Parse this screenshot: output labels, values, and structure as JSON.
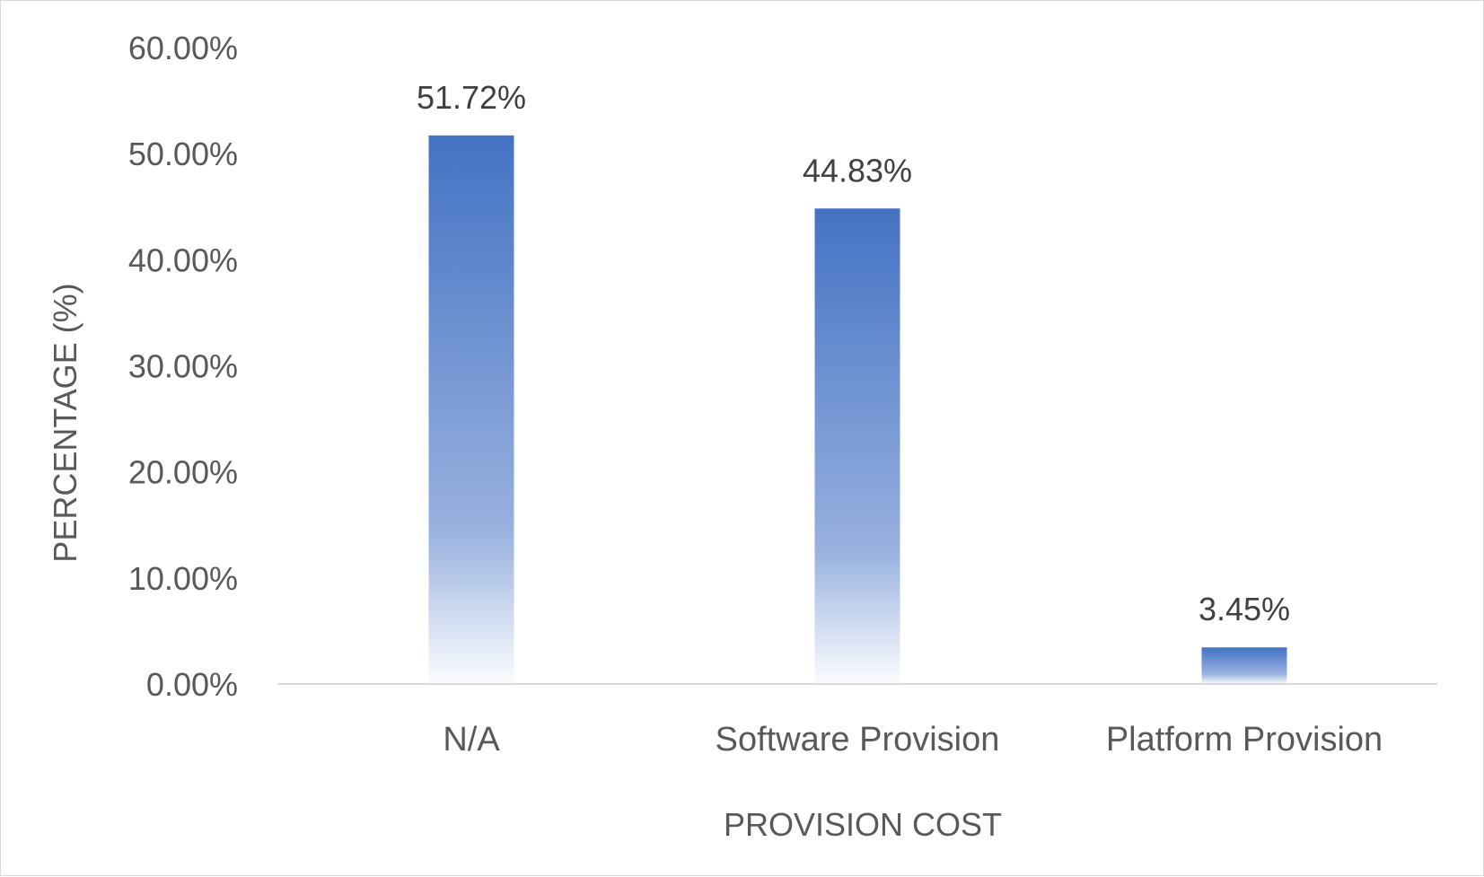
{
  "chart_data": {
    "type": "bar",
    "categories": [
      "N/A",
      "Software Provision",
      "Platform Provision"
    ],
    "values": [
      51.72,
      44.83,
      3.45
    ],
    "data_labels": [
      "51.72%",
      "44.83%",
      "3.45%"
    ],
    "title": "",
    "xlabel": "PROVISION COST",
    "ylabel": "PERCENTAGE (%)",
    "ylim": [
      0,
      60
    ],
    "yticks": [
      0,
      10,
      20,
      30,
      40,
      50,
      60
    ],
    "ytick_labels": [
      "0.00%",
      "10.00%",
      "20.00%",
      "30.00%",
      "40.00%",
      "50.00%",
      "60.00%"
    ],
    "grid": false,
    "legend": "none",
    "colors": {
      "bar": "#4472c4",
      "bar_fade": "#ffffff",
      "axis": "#d9d9d9",
      "text": "#595959"
    }
  }
}
